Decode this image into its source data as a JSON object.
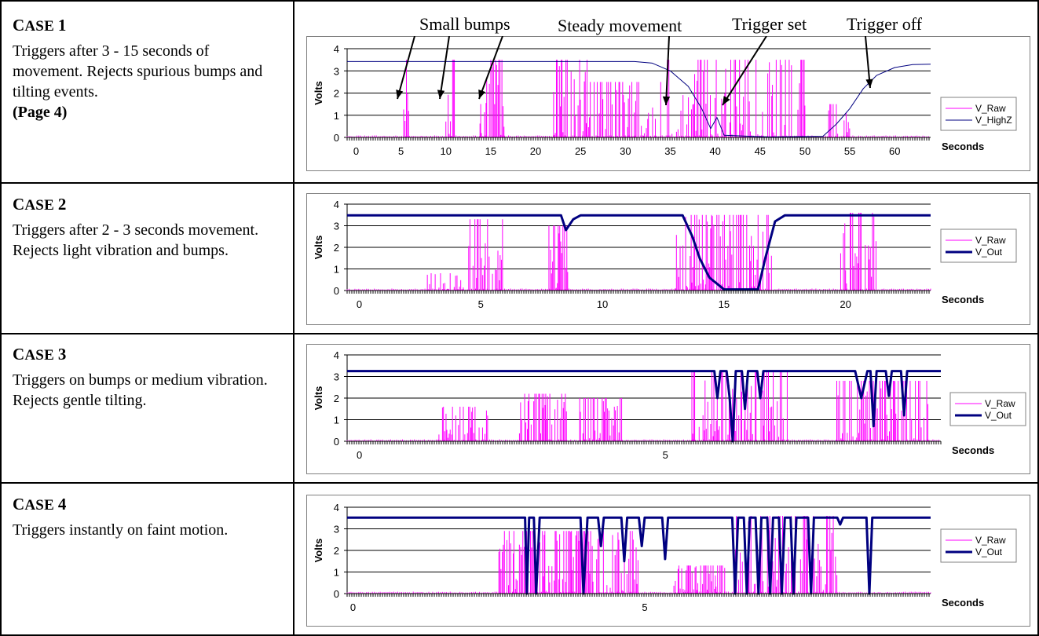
{
  "cases": [
    {
      "title_prefix": "C",
      "title_rest": "ASE",
      "title_num": "1",
      "description": "Triggers after 3 - 15 seconds of movement.  Rejects spurious bumps and tilting events.",
      "page_ref": "(Page 4)"
    },
    {
      "title_prefix": "C",
      "title_rest": "ASE",
      "title_num": "2",
      "description": "Triggers after 2 - 3 seconds movement.  Rejects light vibration and bumps.",
      "page_ref": ""
    },
    {
      "title_prefix": "C",
      "title_rest": "ASE",
      "title_num": "3",
      "description": "Triggers on bumps or medium vibration.   Rejects gentle tilting.",
      "page_ref": ""
    },
    {
      "title_prefix": "C",
      "title_rest": "ASE",
      "title_num": "4",
      "description": "Triggers instantly on faint motion.",
      "page_ref": ""
    }
  ],
  "annotations": [
    "Small bumps",
    "Steady movement",
    "Trigger set",
    "Trigger off"
  ],
  "colors": {
    "raw": "#ff00ff",
    "out": "#000080",
    "grid": "#000000"
  },
  "chart_data": [
    {
      "type": "line",
      "xlabel": "Seconds",
      "ylabel": "Volts",
      "xlim": [
        -1,
        64
      ],
      "ylim": [
        0,
        4
      ],
      "yticks": [
        0,
        1,
        2,
        3,
        4
      ],
      "xticks": [
        0,
        5,
        10,
        15,
        20,
        25,
        30,
        35,
        40,
        45,
        50,
        55,
        60
      ],
      "legend_position": "right",
      "series": [
        {
          "name": "V_Raw",
          "color": "#ff00ff",
          "bursts": [
            [
              5.3,
              6.0,
              3.5,
              0.9
            ],
            [
              10.0,
              11.0,
              3.5,
              0.9
            ],
            [
              13.8,
              16.5,
              3.5,
              0.9
            ],
            [
              22.0,
              26.0,
              3.5,
              0.8
            ],
            [
              26.0,
              34.0,
              2.5,
              0.6
            ],
            [
              34.5,
              50.0,
              3.5,
              0.6
            ],
            [
              52.5,
              55.0,
              1.5,
              0.7
            ]
          ]
        },
        {
          "name": "V_HighZ",
          "color": "#000080",
          "width": 1,
          "points": [
            [
              -1,
              3.42
            ],
            [
              31,
              3.42
            ],
            [
              33,
              3.35
            ],
            [
              35,
              3.0
            ],
            [
              37,
              2.3
            ],
            [
              38.5,
              1.3
            ],
            [
              39.5,
              0.4
            ],
            [
              40.2,
              0.9
            ],
            [
              41,
              0.1
            ],
            [
              44,
              0.05
            ],
            [
              46,
              0.02
            ],
            [
              52,
              0.05
            ],
            [
              53.5,
              0.6
            ],
            [
              55,
              1.3
            ],
            [
              56.5,
              2.2
            ],
            [
              58,
              2.8
            ],
            [
              60,
              3.15
            ],
            [
              62,
              3.28
            ],
            [
              64,
              3.3
            ]
          ]
        }
      ]
    },
    {
      "type": "line",
      "xlabel": "Seconds",
      "ylabel": "Volts",
      "xlim": [
        -0.5,
        23.5
      ],
      "ylim": [
        0,
        4
      ],
      "yticks": [
        0,
        1,
        2,
        3,
        4
      ],
      "xticks": [
        0,
        5,
        10,
        15,
        20
      ],
      "legend_position": "right",
      "series": [
        {
          "name": "V_Raw",
          "color": "#ff00ff",
          "bursts": [
            [
              2.8,
              4.3,
              0.8,
              0.7
            ],
            [
              4.5,
              6.0,
              3.3,
              0.8
            ],
            [
              7.8,
              8.6,
              3.0,
              0.9
            ],
            [
              13.0,
              17.0,
              3.5,
              0.9
            ],
            [
              19.8,
              21.3,
              3.6,
              0.8
            ]
          ]
        },
        {
          "name": "V_Out",
          "color": "#000080",
          "width": 3,
          "points": [
            [
              -0.5,
              3.48
            ],
            [
              8.3,
              3.48
            ],
            [
              8.5,
              2.8
            ],
            [
              8.8,
              3.3
            ],
            [
              9.1,
              3.48
            ],
            [
              13.3,
              3.48
            ],
            [
              13.7,
              2.5
            ],
            [
              14.0,
              1.5
            ],
            [
              14.4,
              0.6
            ],
            [
              15.0,
              0.05
            ],
            [
              16.4,
              0.05
            ],
            [
              16.7,
              1.5
            ],
            [
              17.1,
              3.2
            ],
            [
              17.5,
              3.48
            ],
            [
              23.5,
              3.48
            ]
          ]
        }
      ]
    },
    {
      "type": "line",
      "xlabel": "Seconds",
      "ylabel": "Volts",
      "xlim": [
        -0.2,
        9.5
      ],
      "ylim": [
        0,
        4
      ],
      "yticks": [
        0,
        1,
        2,
        3,
        4
      ],
      "xticks": [
        0,
        5
      ],
      "legend_position": "right",
      "series": [
        {
          "name": "V_Raw",
          "color": "#ff00ff",
          "bursts": [
            [
              1.3,
              2.1,
              1.6,
              0.8
            ],
            [
              2.6,
              3.4,
              2.2,
              0.8
            ],
            [
              3.6,
              4.3,
              2.0,
              0.8
            ],
            [
              5.4,
              7.0,
              3.2,
              0.8
            ],
            [
              7.8,
              9.3,
              2.8,
              0.8
            ]
          ]
        },
        {
          "name": "V_Out",
          "color": "#000080",
          "width": 3,
          "points": [
            [
              -0.2,
              3.25
            ],
            [
              5.8,
              3.25
            ],
            [
              5.85,
              2.0
            ],
            [
              5.9,
              3.25
            ],
            [
              6.0,
              3.25
            ],
            [
              6.05,
              2.0
            ],
            [
              6.1,
              0.0
            ],
            [
              6.15,
              3.25
            ],
            [
              6.25,
              3.25
            ],
            [
              6.3,
              1.5
            ],
            [
              6.35,
              3.25
            ],
            [
              6.5,
              3.25
            ],
            [
              6.55,
              2.0
            ],
            [
              6.6,
              3.25
            ],
            [
              8.1,
              3.25
            ],
            [
              8.2,
              2.0
            ],
            [
              8.3,
              3.25
            ],
            [
              8.35,
              3.25
            ],
            [
              8.4,
              0.7
            ],
            [
              8.45,
              3.25
            ],
            [
              8.6,
              3.25
            ],
            [
              8.65,
              2.1
            ],
            [
              8.7,
              3.25
            ],
            [
              8.85,
              3.25
            ],
            [
              8.9,
              1.2
            ],
            [
              8.95,
              3.25
            ],
            [
              9.5,
              3.25
            ]
          ]
        }
      ]
    },
    {
      "type": "line",
      "xlabel": "Seconds",
      "ylabel": "Volts",
      "xlim": [
        -0.1,
        9.9
      ],
      "ylim": [
        0,
        4
      ],
      "yticks": [
        0,
        1,
        2,
        3,
        4
      ],
      "xticks": [
        0,
        5
      ],
      "legend_position": "right",
      "series": [
        {
          "name": "V_Raw",
          "color": "#ff00ff",
          "bursts": [
            [
              2.5,
              4.9,
              2.9,
              0.8
            ],
            [
              5.5,
              6.4,
              1.3,
              0.8
            ],
            [
              6.5,
              8.3,
              3.6,
              0.8
            ]
          ]
        },
        {
          "name": "V_Out",
          "color": "#000080",
          "width": 3,
          "points": [
            [
              -0.1,
              3.52
            ],
            [
              2.95,
              3.52
            ],
            [
              2.98,
              0.0
            ],
            [
              3.02,
              3.52
            ],
            [
              3.1,
              3.52
            ],
            [
              3.14,
              0.0
            ],
            [
              3.2,
              3.52
            ],
            [
              3.9,
              3.52
            ],
            [
              3.95,
              0.0
            ],
            [
              4.02,
              3.52
            ],
            [
              4.2,
              3.52
            ],
            [
              4.25,
              2.2
            ],
            [
              4.3,
              3.52
            ],
            [
              4.6,
              3.52
            ],
            [
              4.65,
              1.5
            ],
            [
              4.7,
              3.52
            ],
            [
              4.9,
              3.52
            ],
            [
              4.95,
              2.2
            ],
            [
              5.0,
              3.52
            ],
            [
              5.3,
              3.52
            ],
            [
              5.35,
              1.6
            ],
            [
              5.4,
              3.52
            ],
            [
              6.5,
              3.52
            ],
            [
              6.55,
              0.0
            ],
            [
              6.6,
              3.52
            ],
            [
              6.7,
              3.52
            ],
            [
              6.75,
              0.0
            ],
            [
              6.8,
              3.52
            ],
            [
              6.9,
              3.52
            ],
            [
              6.95,
              0.0
            ],
            [
              7.0,
              3.52
            ],
            [
              7.1,
              3.52
            ],
            [
              7.15,
              0.0
            ],
            [
              7.2,
              3.52
            ],
            [
              7.3,
              3.52
            ],
            [
              7.35,
              0.0
            ],
            [
              7.4,
              3.52
            ],
            [
              7.5,
              3.52
            ],
            [
              7.55,
              0.0
            ],
            [
              7.6,
              3.52
            ],
            [
              7.8,
              3.52
            ],
            [
              7.85,
              0.0
            ],
            [
              7.9,
              3.52
            ],
            [
              8.3,
              3.52
            ],
            [
              8.35,
              3.2
            ],
            [
              8.4,
              3.52
            ],
            [
              8.8,
              3.52
            ],
            [
              8.85,
              0.0
            ],
            [
              8.9,
              3.52
            ],
            [
              9.9,
              3.52
            ]
          ]
        }
      ]
    }
  ]
}
